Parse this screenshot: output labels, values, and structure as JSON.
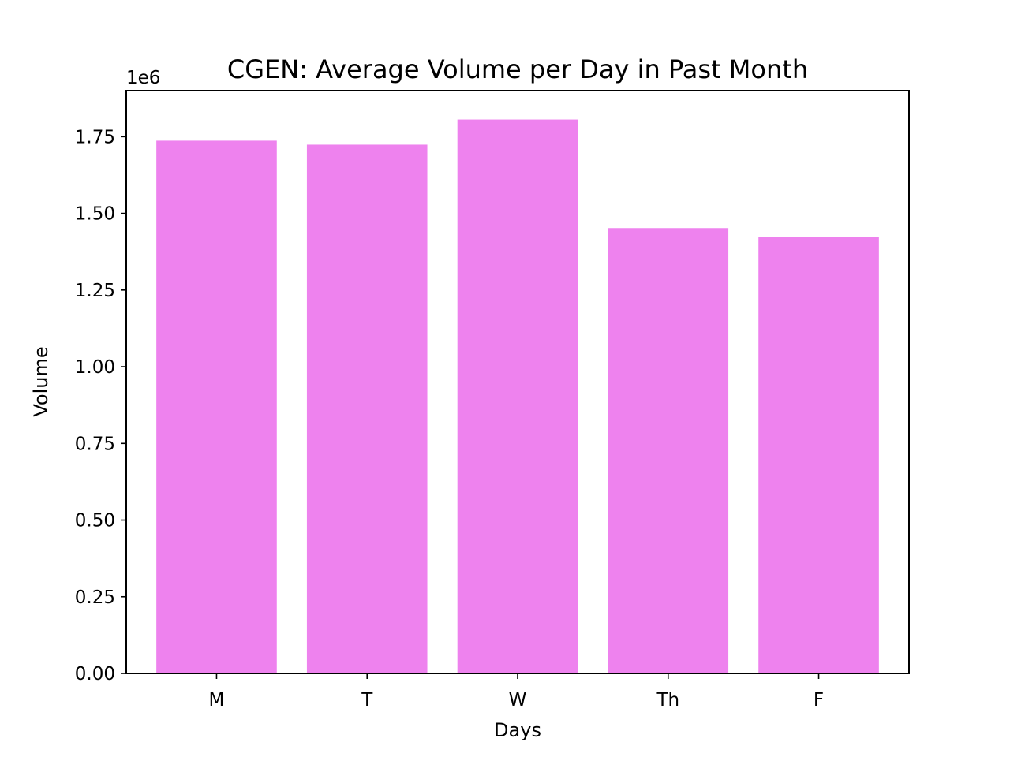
{
  "chart_data": {
    "type": "bar",
    "title": "CGEN: Average Volume per Day in Past Month",
    "xlabel": "Days",
    "ylabel": "Volume",
    "y_offset_label": "1e6",
    "categories": [
      "M",
      "T",
      "W",
      "Th",
      "F"
    ],
    "values": [
      1737000,
      1724000,
      1806000,
      1452000,
      1424000
    ],
    "ylim": [
      0,
      1900000
    ],
    "y_ticks": [
      0,
      250000,
      500000,
      750000,
      1000000,
      1250000,
      1500000,
      1750000
    ],
    "y_tick_labels": [
      "0.00",
      "0.25",
      "0.50",
      "0.75",
      "1.00",
      "1.25",
      "1.50",
      "1.75"
    ],
    "grid": false,
    "legend": "none",
    "bar_color": "#ee82ee"
  }
}
